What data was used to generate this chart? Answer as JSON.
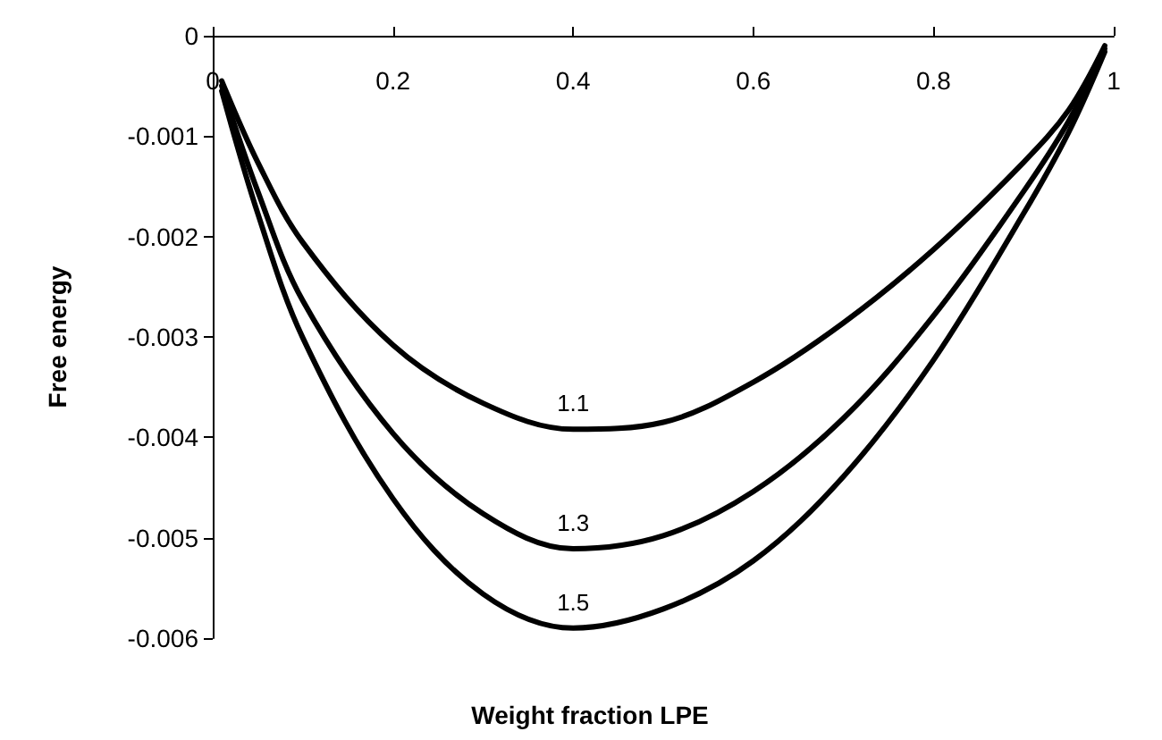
{
  "chart_data": {
    "type": "line",
    "xlabel": "Weight fraction LPE",
    "ylabel": "Free energy",
    "x": [
      0.01,
      0.05,
      0.1,
      0.2,
      0.3,
      0.4,
      0.5,
      0.6,
      0.7,
      0.8,
      0.9,
      0.95,
      0.99
    ],
    "series": [
      {
        "name": "1.1",
        "color": "#000000",
        "values": [
          -0.00045,
          -0.00126,
          -0.00206,
          -0.00308,
          -0.00366,
          -0.00392,
          -0.00385,
          -0.00345,
          -0.00286,
          -0.00213,
          -0.00126,
          -0.00074,
          -0.0001
        ]
      },
      {
        "name": "1.3",
        "color": "#000000",
        "values": [
          -0.0005,
          -0.00155,
          -0.00264,
          -0.00396,
          -0.00476,
          -0.00511,
          -0.00498,
          -0.00454,
          -0.00381,
          -0.00279,
          -0.00155,
          -0.00085,
          -0.00013
        ]
      },
      {
        "name": "1.5",
        "color": "#000000",
        "values": [
          -0.00055,
          -0.00177,
          -0.00301,
          -0.00461,
          -0.00556,
          -0.0059,
          -0.00571,
          -0.00523,
          -0.00439,
          -0.00323,
          -0.00177,
          -0.00096,
          -0.00016
        ]
      }
    ],
    "xlim": [
      0,
      1
    ],
    "xticks": [
      0,
      0.2,
      0.4,
      0.6,
      0.8,
      1
    ],
    "ylim": [
      -0.006,
      0
    ],
    "yticks": [
      -0.006,
      -0.005,
      -0.004,
      -0.003,
      -0.002,
      -0.001,
      0
    ],
    "grid": false,
    "legend": false,
    "marker": "none",
    "line_style": "solid"
  }
}
